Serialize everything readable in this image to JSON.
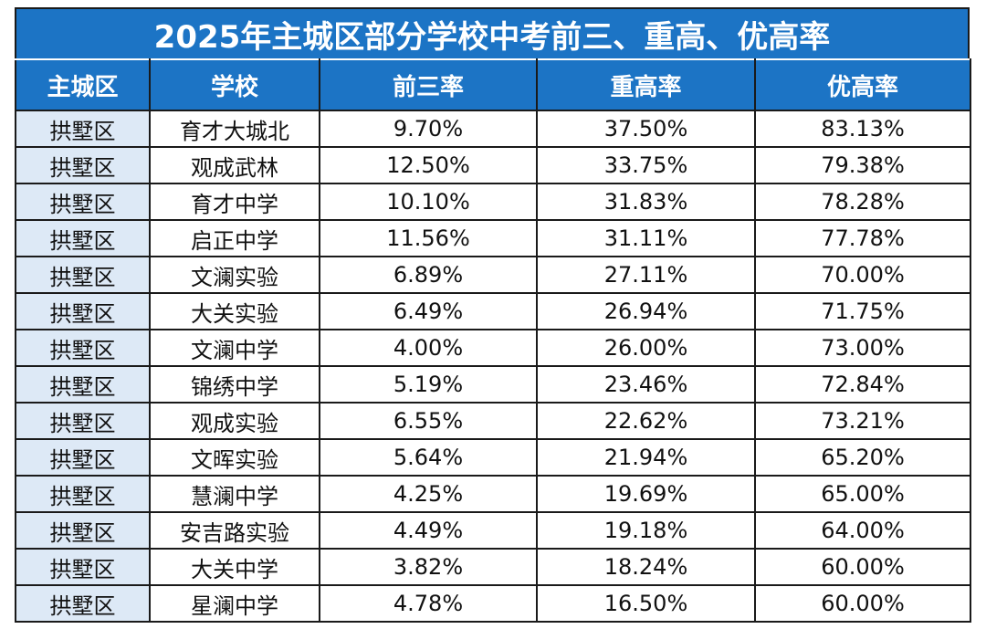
{
  "title": "2025年主城区部分学校中考前三、重高、优高率",
  "colors": {
    "header_bg": "#1c74c5",
    "header_text": "#ffffff",
    "district_cell_bg": "#dde9f6",
    "border": "#1a1a1a"
  },
  "table": {
    "columns": [
      "主城区",
      "学校",
      "前三率",
      "重高率",
      "优高率"
    ],
    "rows": [
      [
        "拱墅区",
        "育才大城北",
        "9.70%",
        "37.50%",
        "83.13%"
      ],
      [
        "拱墅区",
        "观成武林",
        "12.50%",
        "33.75%",
        "79.38%"
      ],
      [
        "拱墅区",
        "育才中学",
        "10.10%",
        "31.83%",
        "78.28%"
      ],
      [
        "拱墅区",
        "启正中学",
        "11.56%",
        "31.11%",
        "77.78%"
      ],
      [
        "拱墅区",
        "文澜实验",
        "6.89%",
        "27.11%",
        "70.00%"
      ],
      [
        "拱墅区",
        "大关实验",
        "6.49%",
        "26.94%",
        "71.75%"
      ],
      [
        "拱墅区",
        "文澜中学",
        "4.00%",
        "26.00%",
        "73.00%"
      ],
      [
        "拱墅区",
        "锦绣中学",
        "5.19%",
        "23.46%",
        "72.84%"
      ],
      [
        "拱墅区",
        "观成实验",
        "6.55%",
        "22.62%",
        "73.21%"
      ],
      [
        "拱墅区",
        "文晖实验",
        "5.64%",
        "21.94%",
        "65.20%"
      ],
      [
        "拱墅区",
        "慧澜中学",
        "4.25%",
        "19.69%",
        "65.00%"
      ],
      [
        "拱墅区",
        "安吉路实验",
        "4.49%",
        "19.18%",
        "64.00%"
      ],
      [
        "拱墅区",
        "大关中学",
        "3.82%",
        "18.24%",
        "60.00%"
      ],
      [
        "拱墅区",
        "星澜中学",
        "4.78%",
        "16.50%",
        "60.00%"
      ]
    ]
  }
}
